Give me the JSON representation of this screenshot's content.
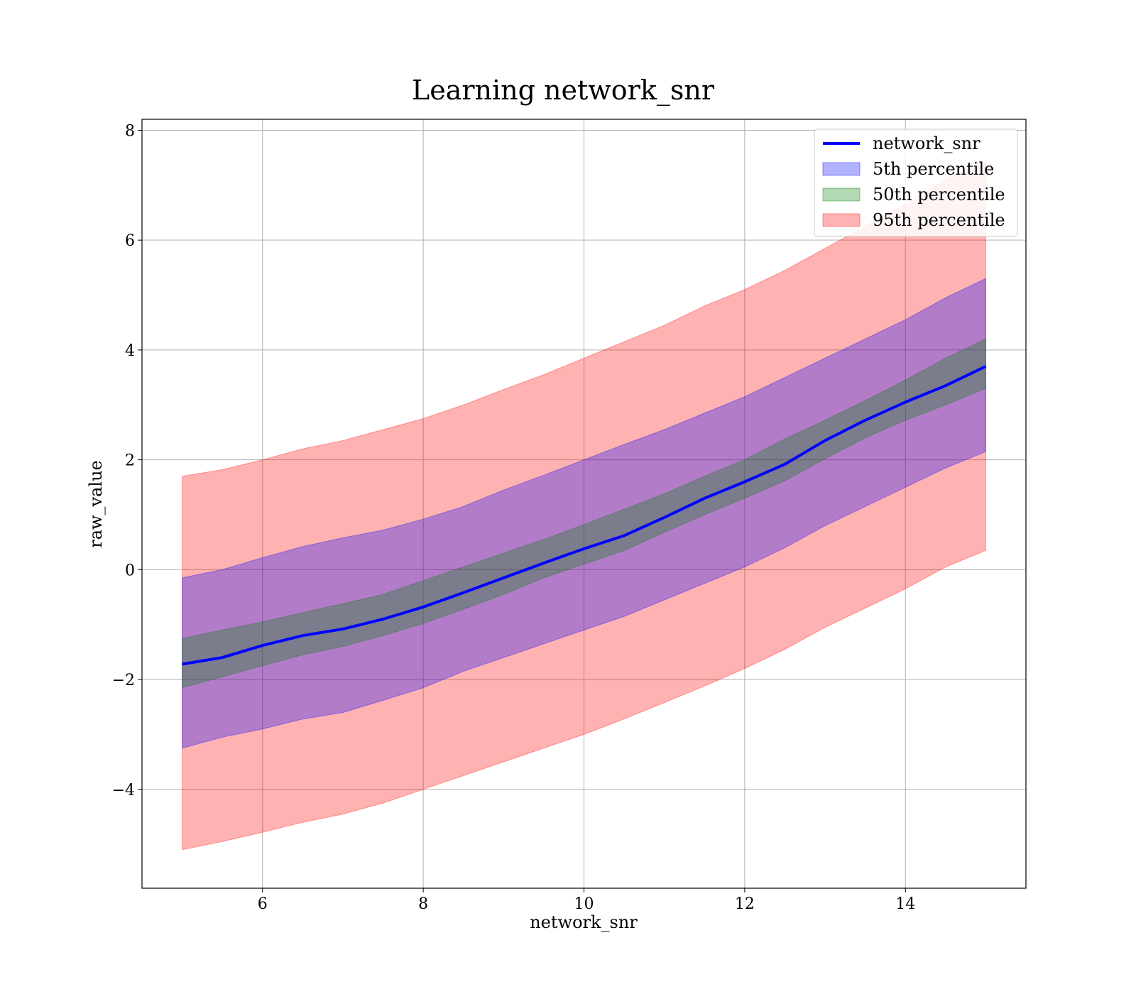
{
  "chart_data": {
    "type": "line",
    "title": "Learning network_snr",
    "xlabel": "network_snr",
    "ylabel": "raw_value",
    "xlim": [
      4.5,
      15.5
    ],
    "ylim": [
      -5.8,
      8.2
    ],
    "xticks": [
      6,
      8,
      10,
      12,
      14
    ],
    "yticks": [
      -4,
      -2,
      0,
      2,
      4,
      6,
      8
    ],
    "xtick_labels": [
      "6",
      "8",
      "10",
      "12",
      "14"
    ],
    "ytick_labels": [
      "−4",
      "−2",
      "0",
      "2",
      "4",
      "6",
      "8"
    ],
    "grid": true,
    "legend_position": "top-right",
    "x": [
      5,
      5.5,
      6,
      6.5,
      7,
      7.5,
      8,
      8.5,
      9,
      9.5,
      10,
      10.5,
      11,
      11.5,
      12,
      12.5,
      13,
      13.5,
      14,
      14.5,
      15
    ],
    "series": [
      {
        "name": "network_snr",
        "kind": "line",
        "color": "#0000ff",
        "values": [
          -1.72,
          -1.6,
          -1.38,
          -1.2,
          -1.08,
          -0.9,
          -0.68,
          -0.42,
          -0.15,
          0.12,
          0.38,
          0.62,
          0.95,
          1.3,
          1.6,
          1.92,
          2.35,
          2.72,
          3.05,
          3.35,
          3.7
        ]
      },
      {
        "name": "5th percentile",
        "kind": "band",
        "color": "#0000ff",
        "lower": [
          -3.25,
          -3.05,
          -2.9,
          -2.72,
          -2.6,
          -2.38,
          -2.15,
          -1.85,
          -1.6,
          -1.35,
          -1.1,
          -0.85,
          -0.55,
          -0.25,
          0.05,
          0.4,
          0.8,
          1.15,
          1.5,
          1.85,
          2.15
        ],
        "upper": [
          -0.15,
          0.0,
          0.22,
          0.42,
          0.58,
          0.72,
          0.92,
          1.15,
          1.45,
          1.72,
          2.0,
          2.28,
          2.55,
          2.85,
          3.15,
          3.5,
          3.85,
          4.2,
          4.55,
          4.95,
          5.3
        ]
      },
      {
        "name": "50th percentile",
        "kind": "band",
        "color": "#008000",
        "lower": [
          -2.15,
          -1.95,
          -1.75,
          -1.55,
          -1.4,
          -1.2,
          -0.98,
          -0.72,
          -0.45,
          -0.15,
          0.1,
          0.35,
          0.68,
          1.0,
          1.3,
          1.62,
          2.02,
          2.4,
          2.72,
          3.0,
          3.3
        ],
        "upper": [
          -1.25,
          -1.1,
          -0.95,
          -0.78,
          -0.62,
          -0.45,
          -0.2,
          0.05,
          0.3,
          0.55,
          0.82,
          1.1,
          1.38,
          1.7,
          2.0,
          2.38,
          2.72,
          3.08,
          3.45,
          3.85,
          4.2
        ]
      },
      {
        "name": "95th percentile",
        "kind": "band",
        "color": "#ff0000",
        "lower": [
          -5.1,
          -4.95,
          -4.78,
          -4.6,
          -4.45,
          -4.25,
          -4.0,
          -3.75,
          -3.5,
          -3.25,
          -3.0,
          -2.72,
          -2.42,
          -2.12,
          -1.8,
          -1.45,
          -1.05,
          -0.7,
          -0.35,
          0.05,
          0.35
        ],
        "upper": [
          1.7,
          1.82,
          2.0,
          2.2,
          2.35,
          2.55,
          2.75,
          3.0,
          3.28,
          3.55,
          3.85,
          4.15,
          4.45,
          4.8,
          5.1,
          5.45,
          5.85,
          6.25,
          6.65,
          7.1,
          7.45
        ]
      }
    ]
  }
}
